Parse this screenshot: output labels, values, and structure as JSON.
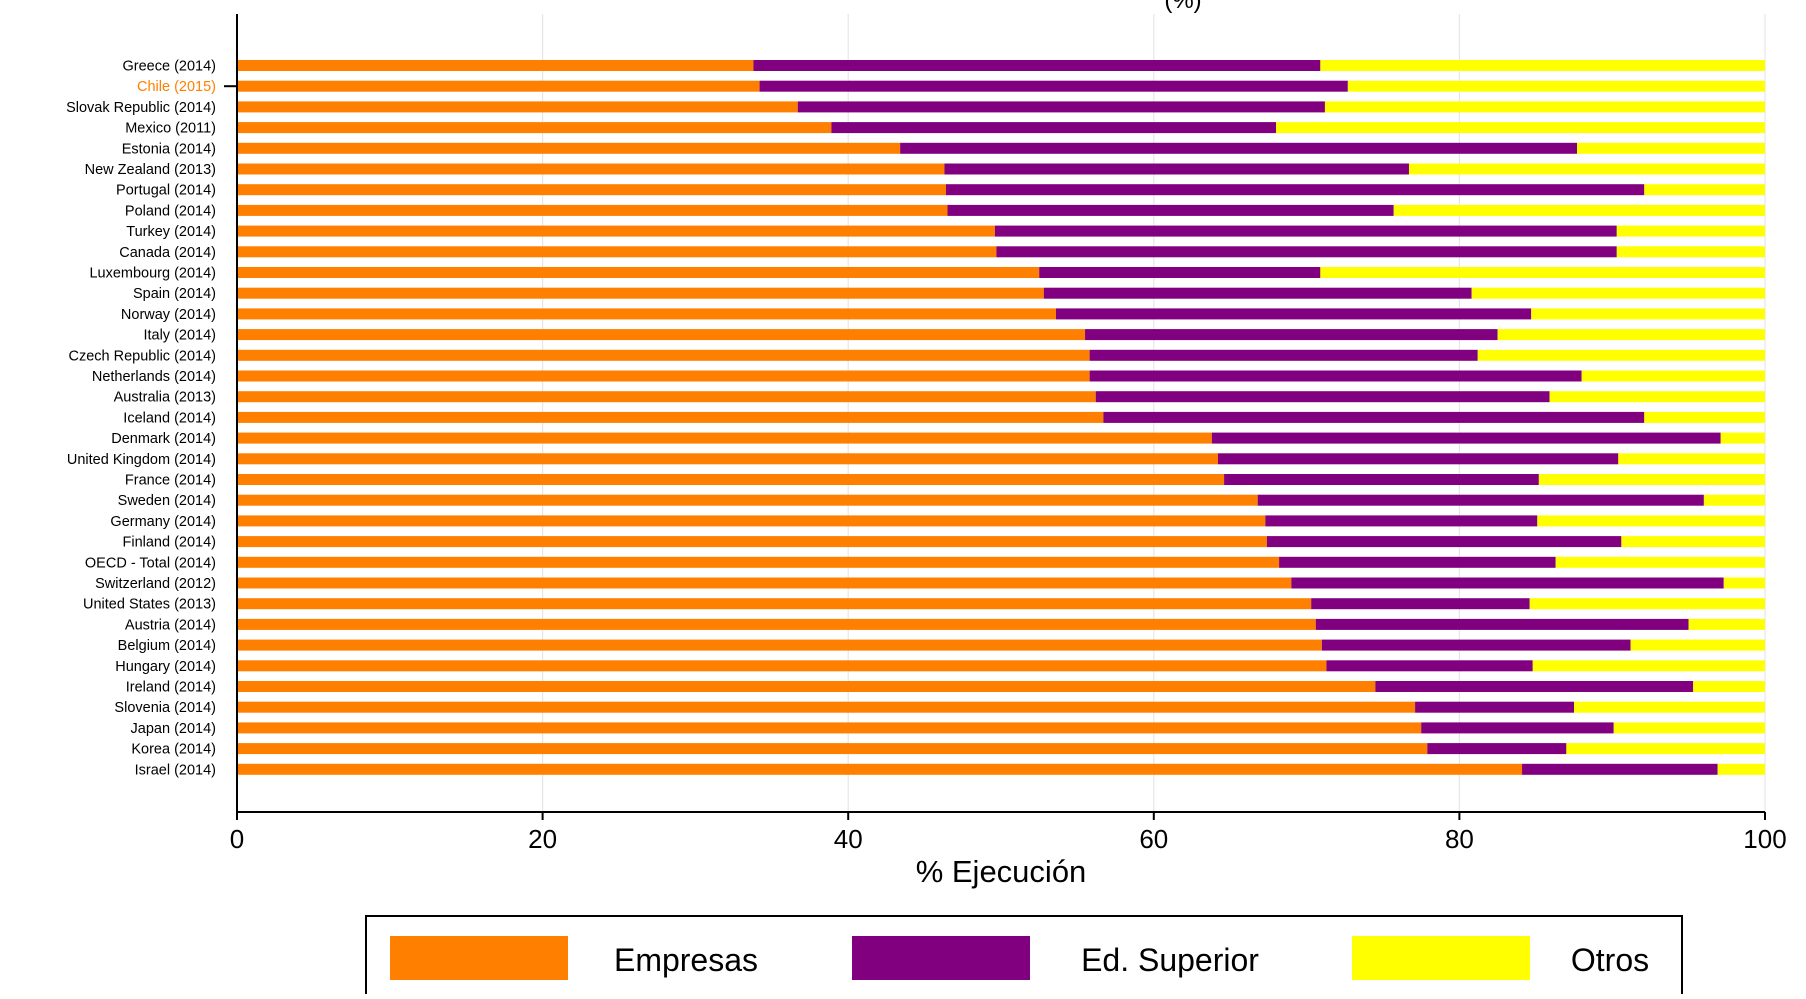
{
  "chart_data": {
    "type": "bar",
    "orientation": "horizontal",
    "stacked": true,
    "title": "(%)",
    "xlabel": "% Ejecución",
    "ylabel": "",
    "xlim": [
      0,
      100
    ],
    "xticks": [
      "0",
      "20",
      "40",
      "60",
      "80",
      "100"
    ],
    "grid": "vertical",
    "legend_position": "bottom",
    "highlight_category": "Chile (2015)",
    "highlight_color": "#FF8000",
    "categories": [
      "Greece (2014)",
      "Chile (2015)",
      "Slovak Republic (2014)",
      "Mexico (2011)",
      "Estonia (2014)",
      "New Zealand (2013)",
      "Portugal (2014)",
      "Poland (2014)",
      "Turkey (2014)",
      "Canada (2014)",
      "Luxembourg (2014)",
      "Spain (2014)",
      "Norway (2014)",
      "Italy (2014)",
      "Czech Republic (2014)",
      "Netherlands (2014)",
      "Australia (2013)",
      "Iceland (2014)",
      "Denmark (2014)",
      "United Kingdom (2014)",
      "France (2014)",
      "Sweden (2014)",
      "Germany (2014)",
      "Finland (2014)",
      "OECD - Total (2014)",
      "Switzerland (2012)",
      "United States (2013)",
      "Austria (2014)",
      "Belgium (2014)",
      "Hungary (2014)",
      "Ireland (2014)",
      "Slovenia (2014)",
      "Japan (2014)",
      "Korea (2014)",
      "Israel (2014)"
    ],
    "series": [
      {
        "name": "Empresas",
        "color": "#FF8000",
        "values": [
          33.8,
          34.2,
          36.7,
          38.9,
          43.4,
          46.3,
          46.4,
          46.5,
          49.6,
          49.7,
          52.5,
          52.8,
          53.6,
          55.5,
          55.8,
          55.8,
          56.2,
          56.7,
          63.8,
          64.2,
          64.6,
          66.8,
          67.3,
          67.4,
          68.2,
          69.0,
          70.3,
          70.6,
          71.0,
          71.3,
          74.5,
          77.1,
          77.5,
          77.9,
          84.1
        ]
      },
      {
        "name": "Ed. Superior",
        "color": "#800080",
        "values": [
          37.1,
          38.5,
          34.5,
          29.1,
          44.3,
          30.4,
          45.7,
          29.2,
          40.7,
          40.6,
          18.4,
          28.0,
          31.1,
          27.0,
          25.4,
          32.2,
          29.7,
          35.4,
          33.3,
          26.2,
          20.6,
          29.2,
          17.8,
          23.2,
          18.1,
          28.3,
          14.3,
          24.4,
          20.2,
          13.5,
          20.8,
          10.4,
          12.6,
          9.1,
          12.8
        ]
      },
      {
        "name": "Otros",
        "color": "#FFFF00",
        "values": [
          29.1,
          27.3,
          28.8,
          32.0,
          12.3,
          23.3,
          7.9,
          24.3,
          9.7,
          9.7,
          29.1,
          19.2,
          15.3,
          17.5,
          18.8,
          12.0,
          14.1,
          7.9,
          2.9,
          9.6,
          14.8,
          4.0,
          14.9,
          9.4,
          13.7,
          2.7,
          15.4,
          5.0,
          8.8,
          15.2,
          4.7,
          12.5,
          9.9,
          13.0,
          3.1
        ]
      }
    ]
  }
}
